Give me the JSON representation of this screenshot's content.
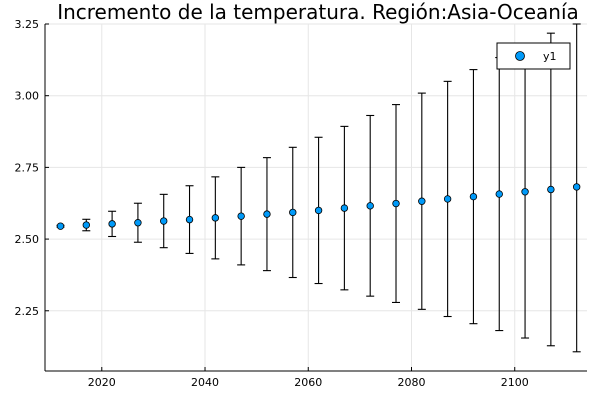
{
  "chart_data": {
    "type": "scatter",
    "title": "Incremento de la temperatura. Región:Asia-Oceanía",
    "xlabel": "",
    "ylabel": "",
    "xlim": [
      2009,
      2114
    ],
    "ylim": [
      2.04,
      3.25
    ],
    "xticks": [
      2020,
      2040,
      2060,
      2080,
      2100
    ],
    "yticks": [
      2.25,
      2.5,
      2.75,
      3.0,
      3.25
    ],
    "xtick_labels": [
      "2020",
      "2040",
      "2060",
      "2080",
      "2100"
    ],
    "ytick_labels": [
      "2.25",
      "2.50",
      "2.75",
      "3.00",
      "3.25"
    ],
    "grid": true,
    "legend": {
      "position": "top-right",
      "entries": [
        "y1"
      ]
    },
    "series": [
      {
        "name": "y1",
        "color": "#009af9",
        "x": [
          2012,
          2017,
          2022,
          2027,
          2032,
          2037,
          2042,
          2047,
          2052,
          2057,
          2062,
          2067,
          2072,
          2077,
          2082,
          2087,
          2092,
          2097,
          2102,
          2107,
          2112
        ],
        "y": [
          2.545,
          2.549,
          2.553,
          2.557,
          2.563,
          2.568,
          2.574,
          2.58,
          2.587,
          2.593,
          2.6,
          2.608,
          2.616,
          2.624,
          2.632,
          2.64,
          2.648,
          2.657,
          2.665,
          2.673,
          2.682
        ],
        "err": [
          0.003,
          0.02,
          0.044,
          0.068,
          0.093,
          0.118,
          0.143,
          0.17,
          0.197,
          0.227,
          0.255,
          0.285,
          0.315,
          0.345,
          0.377,
          0.41,
          0.443,
          0.476,
          0.51,
          0.545,
          0.575
        ]
      }
    ]
  }
}
